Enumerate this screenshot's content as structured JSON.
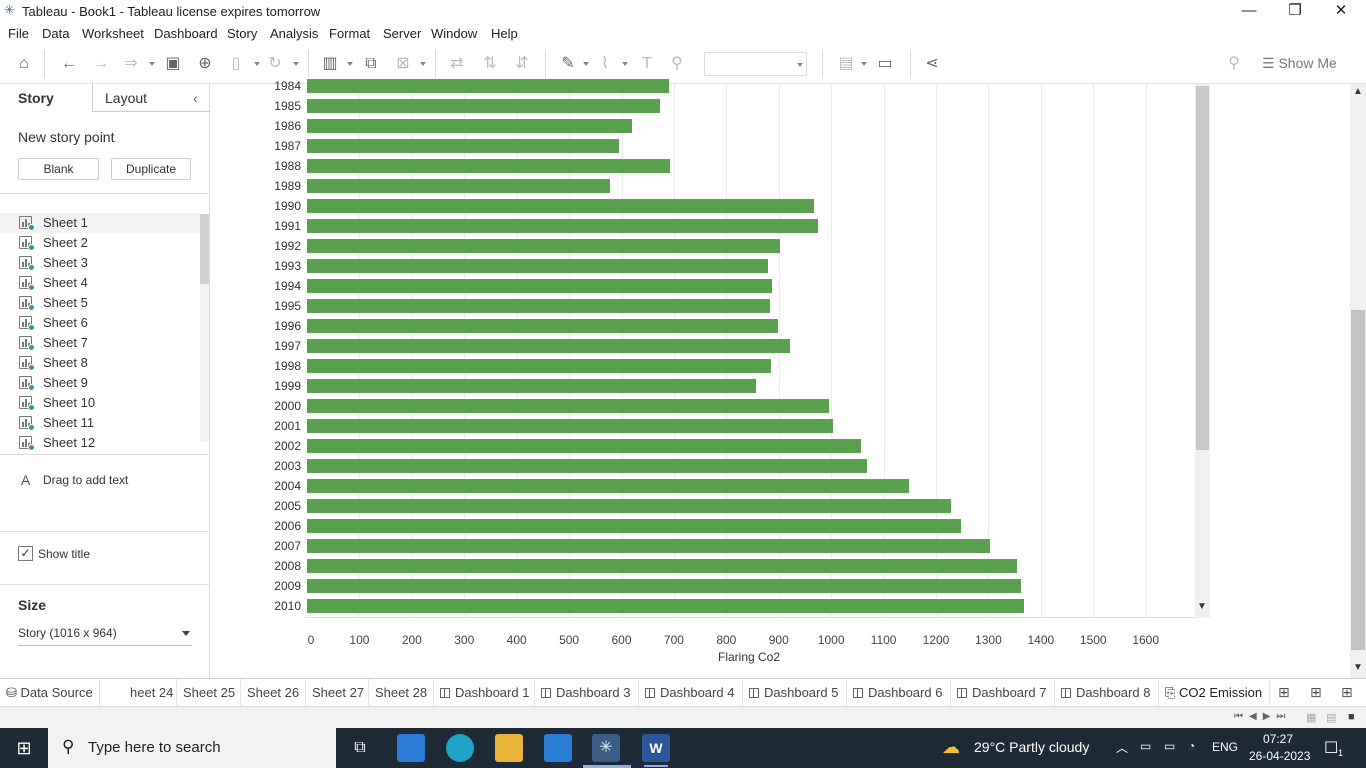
{
  "window": {
    "title": "Tableau - Book1 - Tableau license expires tomorrow",
    "controls": [
      "minimize",
      "restore",
      "close"
    ]
  },
  "menu": [
    "File",
    "Data",
    "Worksheet",
    "Dashboard",
    "Story",
    "Analysis",
    "Format",
    "Server",
    "Window",
    "Help"
  ],
  "toolbar": {
    "show_me_label": "Show Me"
  },
  "left_panel": {
    "tabs": [
      "Story",
      "Layout"
    ],
    "new_story_point": "New story point",
    "blank_button": "Blank",
    "duplicate_button": "Duplicate",
    "sheets": [
      "Sheet 1",
      "Sheet 2",
      "Sheet 3",
      "Sheet 4",
      "Sheet 5",
      "Sheet 6",
      "Sheet 7",
      "Sheet 8",
      "Sheet 9",
      "Sheet 10",
      "Sheet 11",
      "Sheet 12"
    ],
    "drag_text": "Drag to add text",
    "show_title_label": "Show title",
    "show_title_checked": true,
    "size_heading": "Size",
    "size_value": "Story (1016 x 964)"
  },
  "chart_data": {
    "type": "bar",
    "orientation": "horizontal",
    "categories": [
      "1984",
      "1985",
      "1986",
      "1987",
      "1988",
      "1989",
      "1990",
      "1991",
      "1992",
      "1993",
      "1994",
      "1995",
      "1996",
      "1997",
      "1998",
      "1999",
      "2000",
      "2001",
      "2002",
      "2003",
      "2004",
      "2005",
      "2006",
      "2007",
      "2008",
      "2009",
      "2010"
    ],
    "values": [
      690,
      674,
      620,
      596,
      692,
      578,
      967,
      975,
      902,
      880,
      887,
      884,
      898,
      922,
      885,
      857,
      996,
      1004,
      1056,
      1069,
      1148,
      1228,
      1248,
      1303,
      1354,
      1363,
      1368
    ],
    "xlabel": "Flaring Co2",
    "ylabel": "",
    "xlim": [
      0,
      1700
    ],
    "xticks": [
      0,
      100,
      200,
      300,
      400,
      500,
      600,
      700,
      800,
      900,
      1000,
      1100,
      1200,
      1300,
      1400,
      1500,
      1600
    ],
    "grid": true,
    "bar_color": "#59a14f"
  },
  "bottom_tabs": [
    "Data Source",
    "heet 24",
    "Sheet 25",
    "Sheet 26",
    "Sheet 27",
    "Sheet 28",
    "Dashboard 1",
    "Dashboard 3",
    "Dashboard 4",
    "Dashboard 5",
    "Dashboard 6",
    "Dashboard 7",
    "Dashboard 8",
    "CO2 Emission"
  ],
  "taskbar": {
    "search_placeholder": "Type here to search",
    "weather": "29°C  Partly cloudy",
    "language": "ENG",
    "time": "07:27",
    "date": "26-04-2023",
    "notification_count": "1"
  }
}
